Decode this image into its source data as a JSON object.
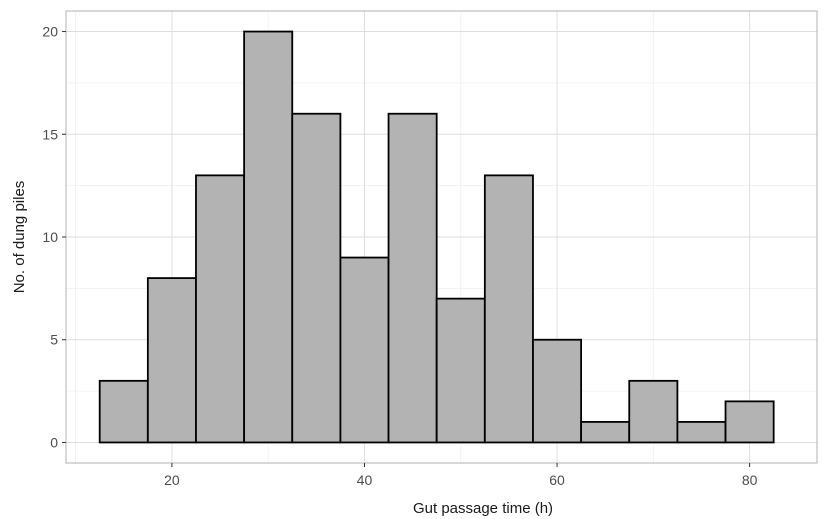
{
  "chart_data": {
    "type": "bar",
    "subtype": "histogram",
    "title": "",
    "xlabel": "Gut passage time (h)",
    "ylabel": "No. of dung piles",
    "bin_width": 5,
    "bins": [
      {
        "x0": 12.5,
        "x1": 17.5,
        "count": 3
      },
      {
        "x0": 17.5,
        "x1": 22.5,
        "count": 8
      },
      {
        "x0": 22.5,
        "x1": 27.5,
        "count": 13
      },
      {
        "x0": 27.5,
        "x1": 32.5,
        "count": 20
      },
      {
        "x0": 32.5,
        "x1": 37.5,
        "count": 16
      },
      {
        "x0": 37.5,
        "x1": 42.5,
        "count": 9
      },
      {
        "x0": 42.5,
        "x1": 47.5,
        "count": 16
      },
      {
        "x0": 47.5,
        "x1": 52.5,
        "count": 7
      },
      {
        "x0": 52.5,
        "x1": 57.5,
        "count": 13
      },
      {
        "x0": 57.5,
        "x1": 62.5,
        "count": 5
      },
      {
        "x0": 62.5,
        "x1": 67.5,
        "count": 1
      },
      {
        "x0": 67.5,
        "x1": 72.5,
        "count": 3
      },
      {
        "x0": 72.5,
        "x1": 77.5,
        "count": 1
      },
      {
        "x0": 77.5,
        "x1": 82.5,
        "count": 2
      }
    ],
    "xlim": [
      9,
      87
    ],
    "ylim": [
      -1,
      21
    ],
    "xticks": [
      20,
      40,
      60,
      80
    ],
    "yticks": [
      0,
      5,
      10,
      15,
      20
    ],
    "grid": true,
    "colors": {
      "bar_fill": "#b3b3b3",
      "bar_stroke": "#000000",
      "grid_major": "#dedede",
      "grid_minor": "#efefef",
      "panel_border": "#b0b0b0"
    }
  }
}
